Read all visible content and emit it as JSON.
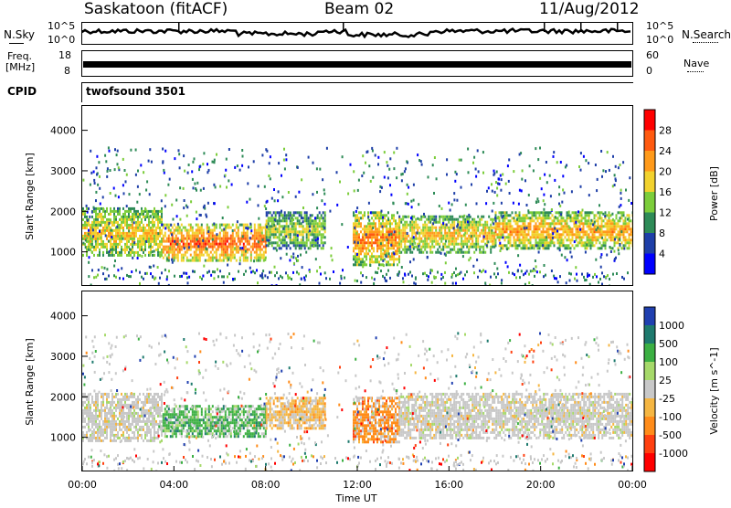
{
  "header": {
    "station": "Saskatoon (fitACF)",
    "beam": "Beam 02",
    "date": "11/Aug/2012"
  },
  "status": {
    "nsky_label": "N.Sky",
    "nsearch_label": "N.Search",
    "log_top": "10^5",
    "log_bottom": "10^0",
    "freq_label_line1": "Freq.",
    "freq_label_line2": "[MHz]",
    "freq_top": "18",
    "freq_bottom": "8",
    "nave_label": "Nave",
    "nave_top": "60",
    "nave_bottom": "0",
    "cpid_label": "CPID",
    "cpid_value": "twofsound 3501"
  },
  "chart_data": [
    {
      "type": "heatmap",
      "panel": "power",
      "ylabel": "Slant Range [km]",
      "ylim": [
        180,
        4600
      ],
      "yticks": [
        "4000",
        "3000",
        "2000",
        "1000"
      ],
      "colorbar_label": "Power [dB]",
      "colorbar_ticks": [
        "28",
        "24",
        "20",
        "16",
        "12",
        "8",
        "4"
      ],
      "colors": [
        "#0000ff",
        "#1e3fa8",
        "#2e8b57",
        "#7ccd3b",
        "#f2d22e",
        "#ff9a1a",
        "#ff5a10",
        "#ff0000"
      ],
      "bands": [
        {
          "x_start": 0.0,
          "x_end": 3.5,
          "range_low": 900,
          "range_high": 2100,
          "level": 20
        },
        {
          "x_start": 3.5,
          "x_end": 8.0,
          "range_low": 800,
          "range_high": 1700,
          "level": 26
        },
        {
          "x_start": 8.0,
          "x_end": 10.6,
          "range_low": 1100,
          "range_high": 2000,
          "level": 16
        },
        {
          "x_start": 11.8,
          "x_end": 13.8,
          "range_low": 700,
          "range_high": 2000,
          "level": 24
        },
        {
          "x_start": 13.8,
          "x_end": 18.0,
          "range_low": 1000,
          "range_high": 1900,
          "level": 20
        },
        {
          "x_start": 18.0,
          "x_end": 24.0,
          "range_low": 1100,
          "range_high": 2000,
          "level": 22
        }
      ]
    },
    {
      "type": "heatmap",
      "panel": "velocity",
      "ylabel": "Slant Range [km]",
      "ylim": [
        180,
        4600
      ],
      "yticks": [
        "4000",
        "3000",
        "2000",
        "1000"
      ],
      "xlabel": "Time UT",
      "xticks": [
        "00:00",
        "04:00",
        "08:00",
        "12:00",
        "16:00",
        "20:00",
        "00:00"
      ],
      "colorbar_label": "Velocity [m s^-1]",
      "colorbar_ticks": [
        "1000",
        "500",
        "100",
        "25",
        "-25",
        "-100",
        "-500",
        "-1000"
      ],
      "colors": [
        "#2040b0",
        "#1e7a6e",
        "#3cb043",
        "#a6d96a",
        "#c8c8c8",
        "#f5b642",
        "#ff8c1a",
        "#ff4010",
        "#ff0000"
      ],
      "bands": [
        {
          "x_start": 0.0,
          "x_end": 3.5,
          "range_low": 900,
          "range_high": 2100,
          "velocity": -25
        },
        {
          "x_start": 3.5,
          "x_end": 8.0,
          "range_low": 1000,
          "range_high": 1800,
          "velocity": 100
        },
        {
          "x_start": 8.0,
          "x_end": 10.6,
          "range_low": 1200,
          "range_high": 2000,
          "velocity": -100
        },
        {
          "x_start": 11.8,
          "x_end": 13.8,
          "range_low": 900,
          "range_high": 2000,
          "velocity": -500
        },
        {
          "x_start": 13.8,
          "x_end": 24.0,
          "range_low": 1000,
          "range_high": 2100,
          "velocity": -25
        }
      ]
    }
  ]
}
